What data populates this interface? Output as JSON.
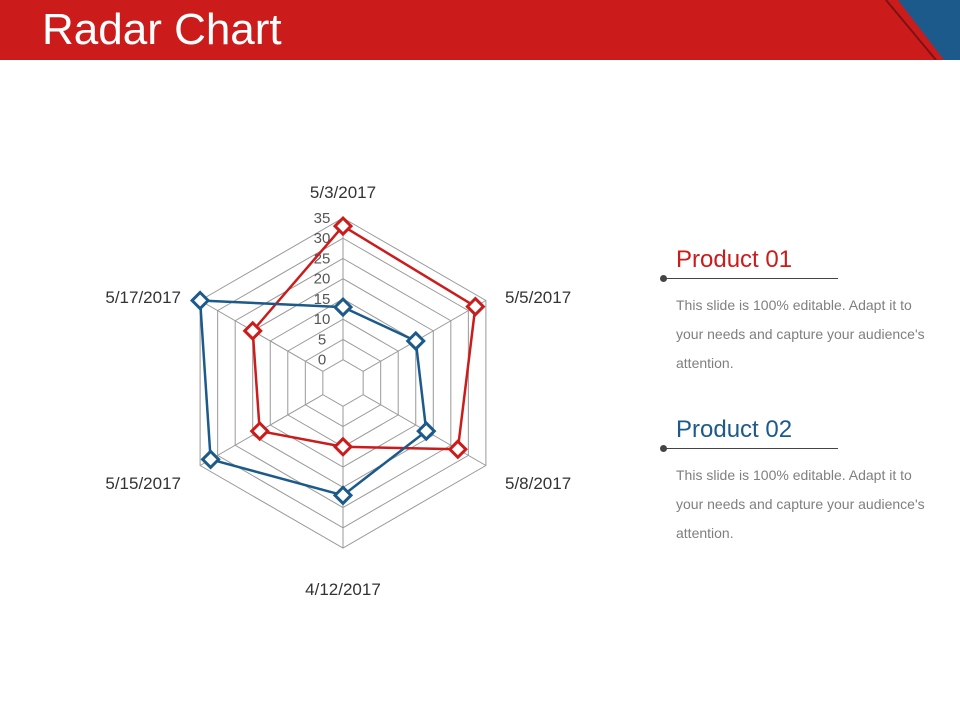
{
  "slide": {
    "title": "Radar Chart"
  },
  "colors": {
    "header": "#cc1b1b",
    "product1": "#cc1b1b",
    "product2": "#1b5a8a",
    "grid": "#999999"
  },
  "chart_data": {
    "type": "radar",
    "categories": [
      "5/3/2017",
      "5/5/2017",
      "5/8/2017",
      "4/12/2017",
      "5/15/2017",
      "5/17/2017"
    ],
    "ticks": [
      0,
      5,
      10,
      15,
      20,
      25,
      30,
      35
    ],
    "rlim": [
      0,
      35
    ],
    "series": [
      {
        "name": "Product 01",
        "color": "#cc1b1b",
        "values": [
          33,
          32,
          27,
          10,
          18,
          20
        ]
      },
      {
        "name": "Product 02",
        "color": "#1b5a8a",
        "values": [
          13,
          15,
          18,
          22,
          32,
          35
        ]
      }
    ]
  },
  "legend": [
    {
      "title": "Product 01",
      "description": "This slide is 100% editable. Adapt it to your needs and capture your audience's attention."
    },
    {
      "title": "Product 02",
      "description": "This slide is 100% editable. Adapt it to your needs and capture your audience's attention."
    }
  ]
}
